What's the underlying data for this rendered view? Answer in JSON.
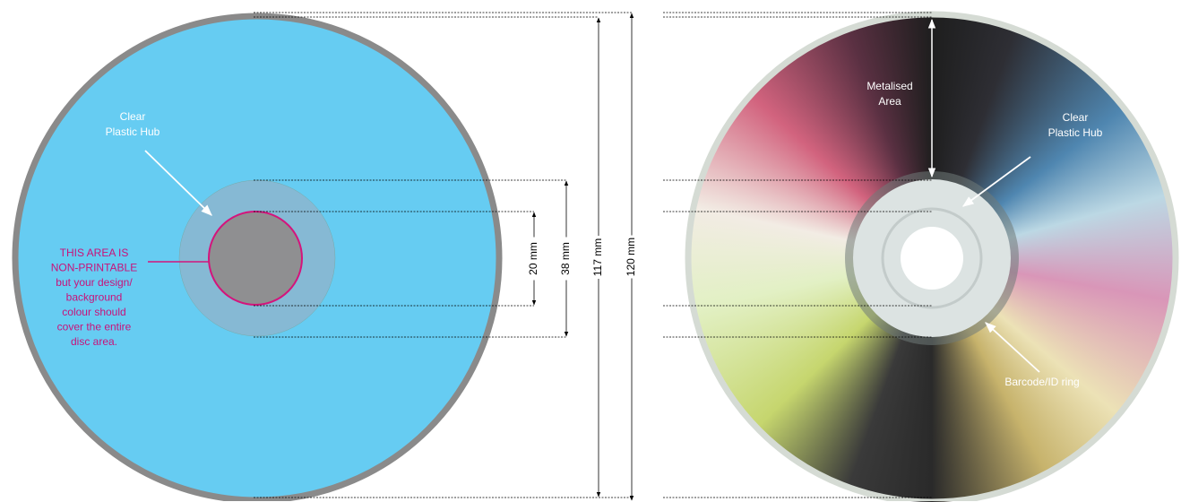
{
  "left_disc": {
    "hub_label": [
      "Clear",
      "Plastic Hub"
    ],
    "note": [
      "THIS AREA IS",
      "NON-PRINTABLE",
      "but your design/",
      "background",
      "colour should",
      "cover the entire",
      "disc area."
    ]
  },
  "dimensions": [
    "20 mm",
    "38 mm",
    "117 mm",
    "120 mm"
  ],
  "right_disc": {
    "metalised_label": [
      "Metalised",
      "Area"
    ],
    "hub_label": [
      "Clear",
      "Plastic Hub"
    ],
    "ring_label": "Barcode/ID ring"
  }
}
